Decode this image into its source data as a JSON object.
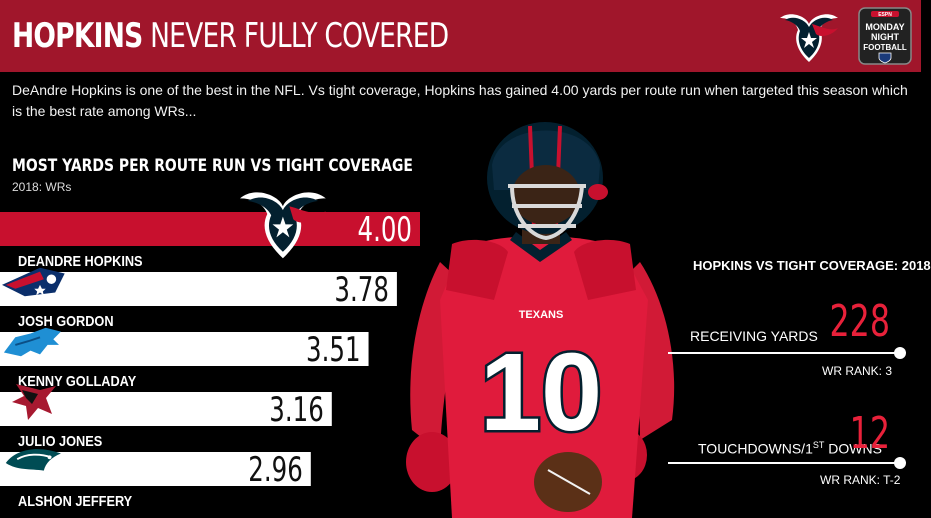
{
  "header": {
    "title_bold": "HOPKINS",
    "title_rest": "NEVER FULLY COVERED"
  },
  "intro": "DeAndre Hopkins is one of the best in the NFL. Vs tight coverage, Hopkins has gained 4.00 yards per route run when targeted this season which is the best rate among WRs...",
  "colors": {
    "brand_red": "#a0162b",
    "highlight_bar": "#c8102e",
    "accent": "#e8213a",
    "bar": "#ffffff",
    "texans_navy": "#03202f"
  },
  "logos": [
    "texans-logo",
    "monday-night-football-logo",
    "patriots-logo",
    "lions-logo",
    "falcons-logo",
    "eagles-logo"
  ],
  "chart_data": {
    "type": "bar",
    "orientation": "horizontal",
    "title": "MOST YARDS PER ROUTE RUN VS TIGHT COVERAGE",
    "subtitle": "2018: WRs",
    "categories": [
      "DEANDRE HOPKINS",
      "JOSH GORDON",
      "KENNY GOLLADAY",
      "JULIO JONES",
      "ALSHON JEFFERY"
    ],
    "values": [
      4.0,
      3.78,
      3.51,
      3.16,
      2.96
    ],
    "value_labels": [
      "4.00",
      "3.78",
      "3.51",
      "3.16",
      "2.96"
    ],
    "teams": [
      "texans",
      "patriots",
      "lions",
      "falcons",
      "eagles"
    ],
    "highlight_index": 0
  },
  "stats_panel": {
    "title": "HOPKINS VS TIGHT COVERAGE: 2018",
    "receiving_yards": {
      "label": "RECEIVING YARDS",
      "value": "228",
      "rank": "WR  RANK: 3"
    },
    "touchdowns": {
      "label_main": "TOUCHDOWNS/1",
      "label_sup": "ST",
      "label_end": " DOWNS",
      "value": "12",
      "rank": "WR RANK: T-2"
    }
  },
  "player_photo": {
    "jersey_brand": "TEXANS",
    "jersey_number": "10"
  }
}
